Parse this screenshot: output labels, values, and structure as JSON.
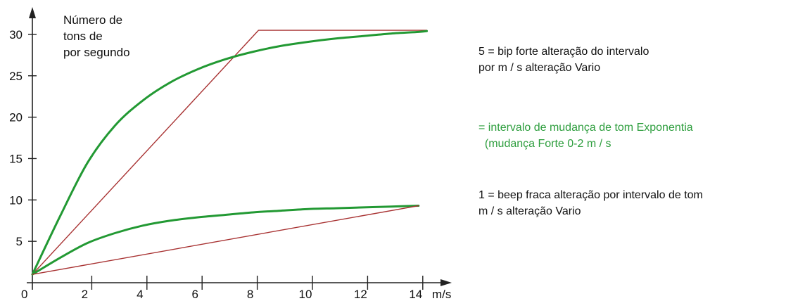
{
  "chart_data": {
    "type": "line",
    "ylabel_lines": [
      "Número de",
      "tons de",
      "por segundo"
    ],
    "xlabel": "m/s",
    "xlim": [
      0,
      15
    ],
    "ylim": [
      0,
      32
    ],
    "x_ticks": [
      0,
      2,
      4,
      6,
      8,
      10,
      12,
      14
    ],
    "y_ticks": [
      5,
      10,
      15,
      20,
      25,
      30
    ],
    "series": [
      {
        "color": "#a83232",
        "points": [
          [
            0,
            1
          ],
          [
            8.2,
            30.5
          ],
          [
            14.3,
            30.5
          ]
        ]
      },
      {
        "color": "#229933",
        "points": [
          [
            0,
            1
          ],
          [
            1,
            8
          ],
          [
            2,
            14.5
          ],
          [
            3,
            19
          ],
          [
            4,
            22
          ],
          [
            5,
            24.2
          ],
          [
            6,
            25.8
          ],
          [
            7,
            27
          ],
          [
            8,
            27.9
          ],
          [
            9,
            28.6
          ],
          [
            10,
            29.1
          ],
          [
            11,
            29.5
          ],
          [
            12,
            29.8
          ],
          [
            13,
            30.1
          ],
          [
            14,
            30.3
          ],
          [
            14.3,
            30.4
          ]
        ]
      },
      {
        "color": "#229933",
        "points": [
          [
            0,
            1
          ],
          [
            1,
            3
          ],
          [
            2,
            4.8
          ],
          [
            3,
            6
          ],
          [
            4,
            6.9
          ],
          [
            5,
            7.5
          ],
          [
            6,
            7.9
          ],
          [
            7,
            8.2
          ],
          [
            8,
            8.5
          ],
          [
            9,
            8.7
          ],
          [
            10,
            8.9
          ],
          [
            11,
            9.0
          ],
          [
            12,
            9.1
          ],
          [
            13,
            9.2
          ],
          [
            14,
            9.3
          ]
        ]
      },
      {
        "color": "#a83232",
        "points": [
          [
            0,
            1
          ],
          [
            14,
            9.3
          ]
        ]
      }
    ]
  },
  "legend": {
    "strong": "5 = bip forte alteração do intervalo\npor m / s alteração Vario",
    "exponential": "= intervalo de mudança de tom Exponentia\n  (mudança Forte 0-2 m / s",
    "weak": "1 = beep fraca alteração por intervalo de tom\nm / s alteração Vario"
  }
}
